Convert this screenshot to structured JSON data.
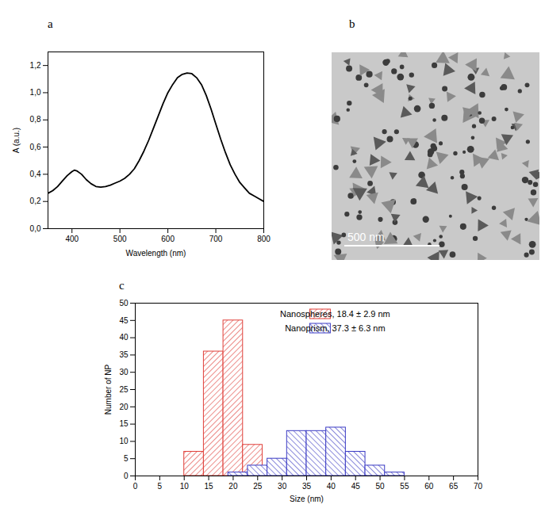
{
  "chart_data": [
    {
      "panel": "a",
      "type": "line",
      "x_label": "Wavelength (nm)",
      "y_label": "A (a.u.)",
      "x": [
        350,
        360,
        370,
        380,
        390,
        400,
        405,
        410,
        420,
        430,
        440,
        450,
        460,
        470,
        480,
        490,
        500,
        510,
        520,
        530,
        540,
        550,
        560,
        570,
        580,
        590,
        600,
        610,
        620,
        630,
        640,
        650,
        660,
        670,
        680,
        690,
        700,
        710,
        720,
        730,
        740,
        750,
        760,
        770,
        780,
        790,
        800
      ],
      "values": [
        0.26,
        0.28,
        0.31,
        0.35,
        0.39,
        0.42,
        0.43,
        0.425,
        0.4,
        0.36,
        0.33,
        0.31,
        0.305,
        0.31,
        0.32,
        0.335,
        0.35,
        0.37,
        0.4,
        0.44,
        0.5,
        0.57,
        0.65,
        0.74,
        0.83,
        0.92,
        1.0,
        1.06,
        1.11,
        1.135,
        1.145,
        1.14,
        1.11,
        1.06,
        0.98,
        0.88,
        0.77,
        0.66,
        0.56,
        0.47,
        0.4,
        0.34,
        0.3,
        0.26,
        0.24,
        0.22,
        0.2
      ],
      "color": "#000000",
      "xlim": [
        350,
        800
      ],
      "xticks": [
        400,
        500,
        600,
        700,
        800
      ],
      "ylim": [
        0,
        1.3
      ],
      "yticks": [
        {
          "value": 0,
          "label": "0,0"
        },
        {
          "value": 0.2,
          "label": "0,2"
        },
        {
          "value": 0.4,
          "label": "0,4"
        },
        {
          "value": 0.6,
          "label": "0,6"
        },
        {
          "value": 0.8,
          "label": "0,8"
        },
        {
          "value": 1.0,
          "label": "1,0"
        },
        {
          "value": 1.2,
          "label": "1,2"
        }
      ]
    },
    {
      "panel": "c",
      "type": "histogram",
      "x_label": "Size (nm)",
      "y_label": "Number of NP",
      "series": [
        {
          "name": "Nanospheres, 18.4 ± 2.9 nm",
          "color": "#e0403a",
          "bins": [
            10,
            14,
            18,
            22,
            26
          ],
          "values": [
            7,
            36,
            45,
            9
          ]
        },
        {
          "name": "Nanoprism, 37.3 ± 6.3 nm",
          "color": "#3b3bc4",
          "bins": [
            19,
            23,
            27,
            31,
            35,
            39,
            43,
            47,
            51,
            55
          ],
          "values": [
            1,
            3,
            5,
            13,
            13,
            14,
            7,
            3,
            1
          ]
        }
      ],
      "xlim": [
        0,
        70
      ],
      "xticks": [
        0,
        5,
        10,
        15,
        20,
        25,
        30,
        35,
        40,
        45,
        50,
        55,
        60,
        65,
        70
      ],
      "ylim": [
        0,
        50
      ],
      "yticks": [
        0,
        5,
        10,
        15,
        20,
        25,
        30,
        35,
        40,
        45,
        50
      ],
      "legend": "top-right"
    }
  ],
  "image": {
    "panel": "b",
    "scale_bar": "500 nm"
  }
}
